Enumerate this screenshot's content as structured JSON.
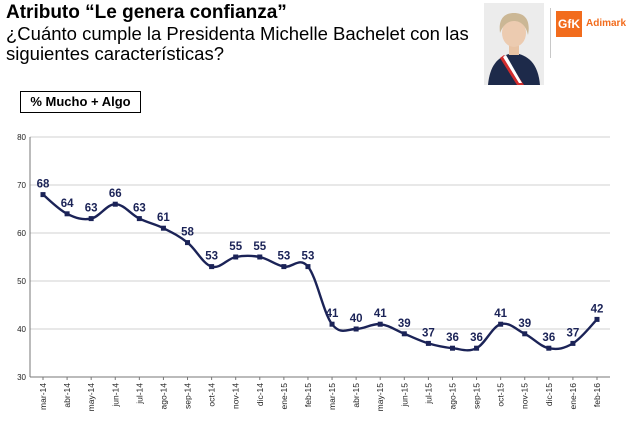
{
  "header": {
    "title": "Atributo “Le genera confianza”",
    "subtitle": "¿Cuánto cumple la Presidenta Michelle Bachelet con las siguientes características?"
  },
  "logo": {
    "mark": "GfK",
    "name": "Adimark"
  },
  "legend": {
    "label": "% Mucho + Algo"
  },
  "chart_data": {
    "type": "line",
    "title": "Atributo “Le genera confianza”",
    "xlabel": "",
    "ylabel": "",
    "ylim": [
      30,
      80
    ],
    "yticks": [
      30,
      40,
      50,
      60,
      70,
      80
    ],
    "grid": true,
    "series_color": "#1b2357",
    "categories": [
      "mar-14",
      "abr-14",
      "may-14",
      "jun-14",
      "jul-14",
      "ago-14",
      "sep-14",
      "oct-14",
      "nov-14",
      "dic-14",
      "ene-15",
      "feb-15",
      "mar-15",
      "abr-15",
      "may-15",
      "jun-15",
      "jul-15",
      "ago-15",
      "sep-15",
      "oct-15",
      "nov-15",
      "dic-15",
      "ene-16",
      "feb-16"
    ],
    "series": [
      {
        "name": "% Mucho + Algo",
        "values": [
          68,
          64,
          63,
          66,
          63,
          61,
          58,
          53,
          55,
          55,
          53,
          53,
          41,
          40,
          41,
          39,
          37,
          36,
          36,
          41,
          39,
          36,
          37,
          42
        ]
      }
    ]
  }
}
